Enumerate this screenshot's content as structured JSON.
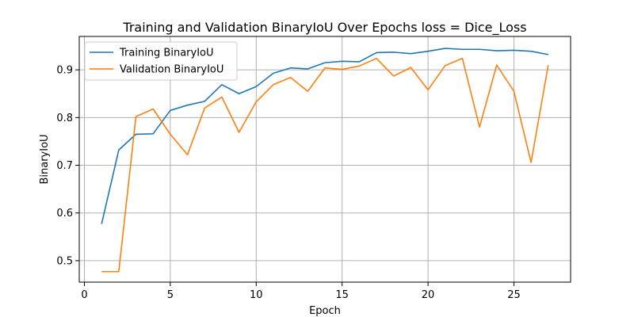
{
  "chart_data": {
    "type": "line",
    "title": "Training and Validation BinaryIoU Over Epochs loss = Dice_Loss",
    "xlabel": "Epoch",
    "ylabel": "BinaryIoU",
    "xlim": [
      -0.3,
      28.3
    ],
    "ylim": [
      0.455,
      0.97
    ],
    "xticks": [
      0,
      5,
      10,
      15,
      20,
      25
    ],
    "yticks": [
      0.5,
      0.6,
      0.7,
      0.8,
      0.9
    ],
    "grid": true,
    "legend_position": "upper-left",
    "x": [
      1,
      2,
      3,
      4,
      5,
      6,
      7,
      8,
      9,
      10,
      11,
      12,
      13,
      14,
      15,
      16,
      17,
      18,
      19,
      20,
      21,
      22,
      23,
      24,
      25,
      26,
      27
    ],
    "series": [
      {
        "name": "Training BinaryIoU",
        "color": "#1f77b4",
        "values": [
          0.577,
          0.732,
          0.765,
          0.766,
          0.815,
          0.826,
          0.834,
          0.869,
          0.85,
          0.865,
          0.893,
          0.904,
          0.902,
          0.915,
          0.918,
          0.917,
          0.936,
          0.937,
          0.934,
          0.939,
          0.945,
          0.943,
          0.943,
          0.94,
          0.941,
          0.939,
          0.932
        ]
      },
      {
        "name": "Validation BinaryIoU",
        "color": "#ff7f0e",
        "values": [
          0.477,
          0.477,
          0.802,
          0.818,
          0.765,
          0.722,
          0.82,
          0.843,
          0.769,
          0.833,
          0.869,
          0.884,
          0.855,
          0.904,
          0.901,
          0.908,
          0.924,
          0.887,
          0.905,
          0.858,
          0.909,
          0.924,
          0.78,
          0.91,
          0.855,
          0.706,
          0.91
        ]
      }
    ]
  }
}
